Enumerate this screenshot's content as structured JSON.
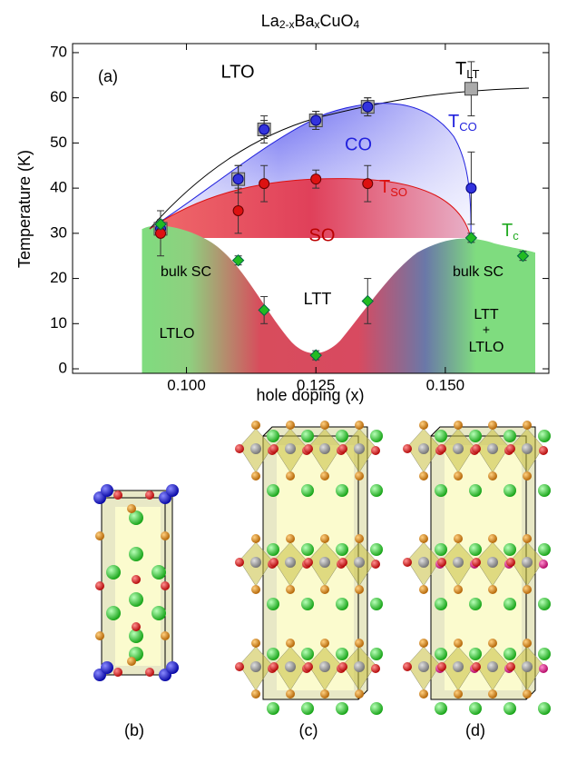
{
  "chart_data": {
    "type": "scatter",
    "title": [
      "La",
      "2-x",
      "Ba",
      "x",
      "CuO",
      "4"
    ],
    "panel_label": "(a)",
    "xlabel": "hole doping (x)",
    "ylabel": "Temperature (K)",
    "xlim": [
      0.078,
      0.17
    ],
    "ylim": [
      -1,
      72
    ],
    "xticks": [
      {
        "value": 0.1,
        "label": "0.100"
      },
      {
        "value": 0.125,
        "label": "0.125"
      },
      {
        "value": 0.15,
        "label": "0.150"
      }
    ],
    "yticks": [
      0,
      10,
      20,
      30,
      40,
      50,
      60,
      70
    ],
    "series": [
      {
        "name": "T",
        "name_sub": "LT",
        "color": "#aaaaaa",
        "marker": "square",
        "x": [
          0.095,
          0.11,
          0.115,
          0.125,
          0.135,
          0.155
        ],
        "values": [
          31,
          42,
          53,
          55,
          58,
          62
        ],
        "errors": [
          1,
          3,
          3,
          2,
          2,
          6
        ]
      },
      {
        "name": "T",
        "name_sub": "CO",
        "color": "#3333dd",
        "marker": "circle",
        "x": [
          0.095,
          0.11,
          0.115,
          0.125,
          0.135,
          0.155
        ],
        "values": [
          31,
          42,
          53,
          55,
          58,
          40
        ],
        "errors": [
          1,
          3,
          2,
          2,
          2,
          8
        ]
      },
      {
        "name": "T",
        "name_sub": "SO",
        "color": "#dd1111",
        "marker": "circle",
        "x": [
          0.095,
          0.11,
          0.115,
          0.125,
          0.135
        ],
        "values": [
          30,
          35,
          41,
          42,
          41
        ],
        "errors": [
          5,
          5,
          4,
          2,
          4
        ]
      },
      {
        "name": "T",
        "name_sub": "c",
        "color": "#22bb22",
        "marker": "diamond",
        "x": [
          0.095,
          0.11,
          0.115,
          0.125,
          0.135,
          0.155,
          0.165
        ],
        "values": [
          32,
          24,
          13,
          3,
          15,
          29,
          25
        ],
        "errors": [
          1,
          1,
          3,
          1,
          5,
          1,
          1
        ]
      }
    ],
    "annotations": [
      "LTO",
      "CO",
      "SO",
      "LTT",
      "bulk SC",
      "bulk SC",
      "LTLO",
      "LTT",
      "+",
      "LTLO"
    ]
  },
  "structure_labels": [
    "(b)",
    "(c)",
    "(d)"
  ]
}
